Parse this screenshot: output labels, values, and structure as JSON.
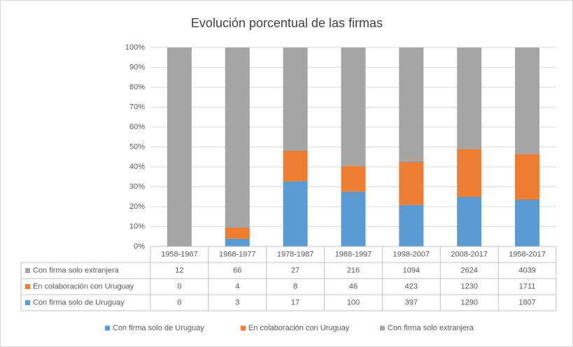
{
  "chart_data": {
    "type": "bar",
    "stacked": "percent",
    "title": "Evolución porcentual de las firmas",
    "categories": [
      "1958-1967",
      "1968-1977",
      "1978-1987",
      "1988-1997",
      "1998-2007",
      "2008-2017",
      "1958-2017"
    ],
    "series": [
      {
        "name": "Con firma solo de Uruguay",
        "color": "#5b9bd5",
        "values": [
          0,
          3,
          17,
          100,
          397,
          1290,
          1807
        ]
      },
      {
        "name": "En colaboración con Uruguay",
        "color": "#ed7d31",
        "values": [
          0,
          4,
          8,
          46,
          423,
          1230,
          1711
        ]
      },
      {
        "name": "Con firma solo extranjera",
        "color": "#a5a5a5",
        "values": [
          12,
          66,
          27,
          216,
          1094,
          2624,
          4039
        ]
      }
    ],
    "ylim": [
      0,
      100
    ],
    "yticks": [
      {
        "value": 0,
        "label": "0%"
      },
      {
        "value": 10,
        "label": "10%"
      },
      {
        "value": 20,
        "label": "20%"
      },
      {
        "value": 30,
        "label": "30%"
      },
      {
        "value": 40,
        "label": "40%"
      },
      {
        "value": 50,
        "label": "50%"
      },
      {
        "value": 60,
        "label": "60%"
      },
      {
        "value": 70,
        "label": "70%"
      },
      {
        "value": 80,
        "label": "80%"
      },
      {
        "value": 90,
        "label": "90%"
      },
      {
        "value": 100,
        "label": "100%"
      }
    ],
    "grid": true,
    "data_table": true,
    "legend": "bottom"
  }
}
